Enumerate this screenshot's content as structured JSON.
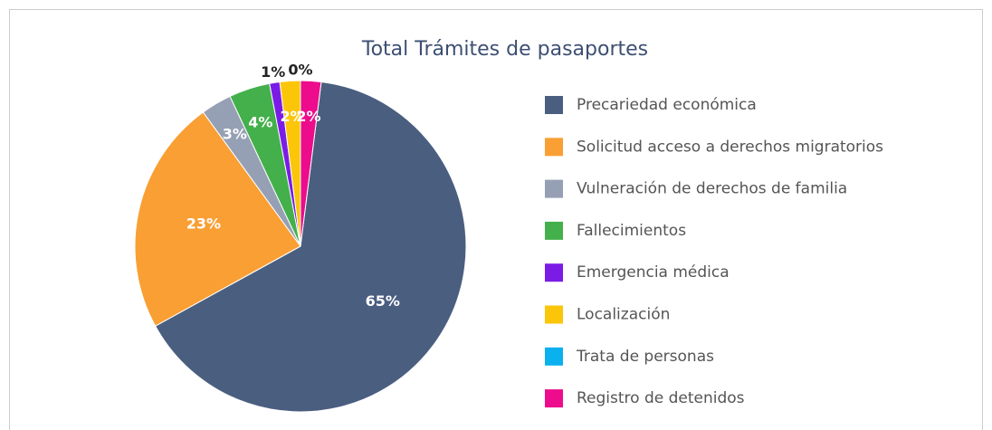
{
  "chart_data": {
    "type": "pie",
    "title": "Total Trámites de pasaportes",
    "categories": [
      "Precariedad económica",
      "Solicitud acceso a derechos migratorios",
      "Vulneración de derechos de familia",
      "Fallecimientos",
      "Emergencia médica",
      "Localización",
      "Trata de personas",
      "Registro de detenidos"
    ],
    "values": [
      65,
      23,
      3,
      4,
      1,
      2,
      0,
      2
    ],
    "value_labels": [
      "65%",
      "23%",
      "3%",
      "4%",
      "1%",
      "2%",
      "0%",
      "2%"
    ],
    "colors": [
      "#4a5e80",
      "#f99f34",
      "#95a0b5",
      "#44b04b",
      "#7a1ce6",
      "#fbc60a",
      "#0bb0ee",
      "#ec0c8c"
    ],
    "legend": "right"
  }
}
